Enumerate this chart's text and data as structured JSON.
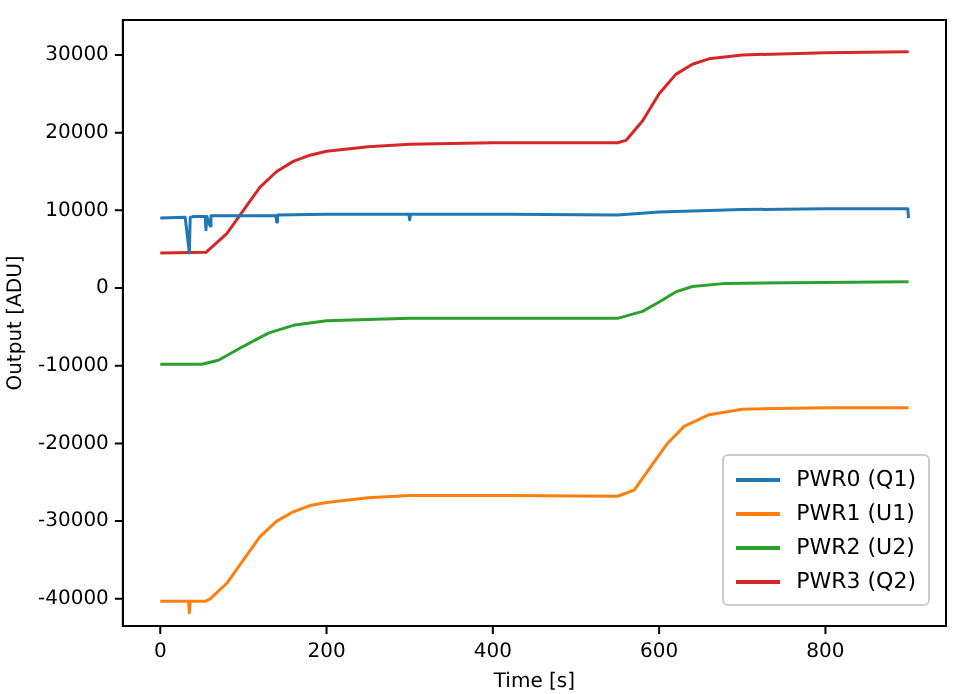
{
  "chart_data": {
    "type": "line",
    "xlabel": "Time [s]",
    "ylabel": "Output [ADU]",
    "xlim": [
      -45,
      945
    ],
    "xticks": [
      0,
      200,
      400,
      600,
      800
    ],
    "ylim": [
      -43500,
      34500
    ],
    "yticks": [
      -40000,
      -30000,
      -20000,
      -10000,
      0,
      10000,
      20000,
      30000
    ],
    "grid": false,
    "legend": "bottom right",
    "marker": "none",
    "line_style": "solid",
    "series": [
      {
        "name": "PWR0 (Q1)",
        "color": "#1f77b4",
        "x": [
          0,
          30,
          35,
          36,
          40,
          54,
          55,
          56,
          60,
          61,
          100,
          139,
          140,
          141,
          200,
          299,
          300,
          301,
          400,
          550,
          600,
          700,
          800,
          899,
          900
        ],
        "values": [
          9000,
          9100,
          4500,
          9100,
          9200,
          9200,
          7500,
          9200,
          8000,
          9300,
          9300,
          9300,
          8500,
          9400,
          9500,
          9500,
          8800,
          9500,
          9500,
          9400,
          9800,
          10100,
          10200,
          10200,
          9000
        ]
      },
      {
        "name": "PWR1 (U1)",
        "color": "#ff7f0e",
        "x": [
          0,
          34,
          35,
          36,
          55,
          60,
          80,
          100,
          120,
          140,
          160,
          180,
          200,
          250,
          300,
          400,
          550,
          570,
          590,
          610,
          630,
          660,
          700,
          800,
          900
        ],
        "values": [
          -40300,
          -40300,
          -41800,
          -40300,
          -40300,
          -40000,
          -38000,
          -35000,
          -32000,
          -30000,
          -28800,
          -28000,
          -27600,
          -27000,
          -26700,
          -26700,
          -26800,
          -26000,
          -23000,
          -20000,
          -17800,
          -16300,
          -15600,
          -15400,
          -15400
        ]
      },
      {
        "name": "PWR2 (U2)",
        "color": "#2ca02c",
        "x": [
          0,
          50,
          70,
          100,
          130,
          160,
          200,
          300,
          550,
          580,
          600,
          620,
          640,
          680,
          900
        ],
        "values": [
          -9800,
          -9800,
          -9300,
          -7500,
          -5800,
          -4800,
          -4200,
          -3900,
          -3900,
          -3000,
          -1800,
          -500,
          200,
          600,
          800
        ]
      },
      {
        "name": "PWR3 (Q2)",
        "color": "#d62728",
        "x": [
          0,
          55,
          80,
          100,
          120,
          140,
          160,
          180,
          200,
          250,
          300,
          400,
          550,
          560,
          580,
          600,
          620,
          640,
          660,
          700,
          800,
          900
        ],
        "values": [
          4500,
          4600,
          7000,
          10000,
          13000,
          15000,
          16300,
          17100,
          17600,
          18200,
          18500,
          18700,
          18700,
          19000,
          21500,
          25000,
          27500,
          28800,
          29500,
          30000,
          30300,
          30400
        ]
      }
    ]
  }
}
